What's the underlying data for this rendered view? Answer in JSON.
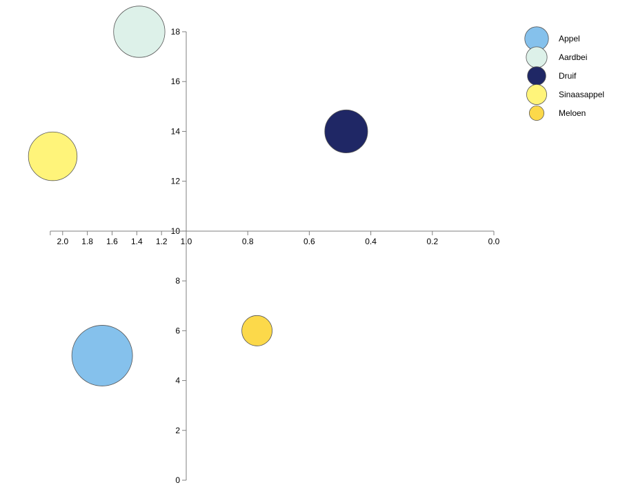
{
  "chart_data": {
    "type": "scatter",
    "x_tick_labels": [
      "2.0",
      "1.8",
      "1.6",
      "1.4",
      "1.2",
      "1.0",
      "0.8",
      "0.6",
      "0.4",
      "0.2",
      "0.0"
    ],
    "y_tick_labels": [
      "0",
      "2",
      "4",
      "6",
      "8",
      "10",
      "12",
      "14",
      "16",
      "18"
    ],
    "y_range": [
      0,
      18
    ],
    "grid": false,
    "legend_position": "top-right",
    "series": [
      {
        "name": "Appel",
        "x": 1.68,
        "y": 5,
        "size": 14,
        "color": "#85C1EC"
      },
      {
        "name": "Aardbei",
        "x": 1.38,
        "y": 18,
        "size": 10,
        "color": "#DDF1E9"
      },
      {
        "name": "Druif",
        "x": 0.48,
        "y": 14,
        "size": 7,
        "color": "#1F2765"
      },
      {
        "name": "Sinaasappel",
        "x": 2.08,
        "y": 13,
        "size": 9,
        "color": "#FFF47A"
      },
      {
        "name": "Meloen",
        "x": 0.77,
        "y": 6,
        "size": 3.5,
        "color": "#FCD94A"
      }
    ]
  }
}
